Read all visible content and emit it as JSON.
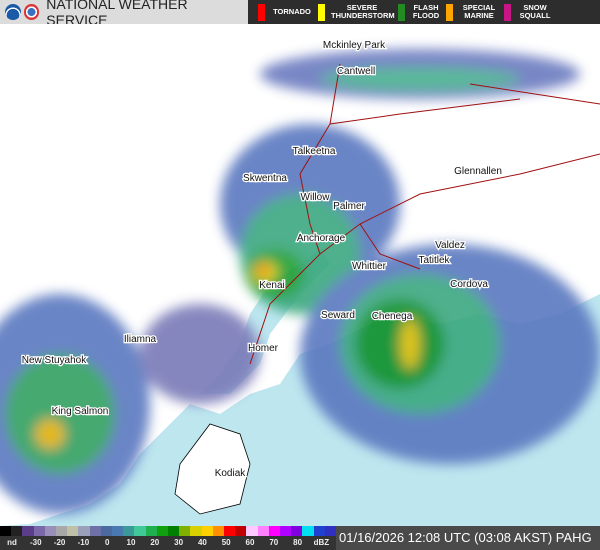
{
  "header": {
    "title": "NATIONAL WEATHER SERVICE",
    "logos": [
      "noaa-logo",
      "nws-logo"
    ]
  },
  "warnings": [
    {
      "label": "TORNADO",
      "color": "#ff0000"
    },
    {
      "label": "SEVERE THUNDERSTORM",
      "color": "#ffff00"
    },
    {
      "label": "FLASH FLOOD",
      "color": "#228b22"
    },
    {
      "label": "SPECIAL MARINE",
      "color": "#ffa500"
    },
    {
      "label": "SNOW SQUALL",
      "color": "#c71585"
    }
  ],
  "map": {
    "cities": [
      {
        "name": "Mckinley Park"
      },
      {
        "name": "Cantwell"
      },
      {
        "name": "Talkeetna"
      },
      {
        "name": "Skwentna"
      },
      {
        "name": "Willow"
      },
      {
        "name": "Glennallen"
      },
      {
        "name": "Palmer"
      },
      {
        "name": "Anchorage"
      },
      {
        "name": "Valdez"
      },
      {
        "name": "Whittier"
      },
      {
        "name": "Tatitlek"
      },
      {
        "name": "Kenai"
      },
      {
        "name": "Cordova"
      },
      {
        "name": "Seward"
      },
      {
        "name": "Chenega"
      },
      {
        "name": "Iliamna"
      },
      {
        "name": "Homer"
      },
      {
        "name": "New Stuyahok"
      },
      {
        "name": "King Salmon"
      },
      {
        "name": "Kodiak"
      }
    ],
    "colors": {
      "ocean": "#bde6ef",
      "land": "#ffffff",
      "roads": "#a01010"
    }
  },
  "legend": {
    "colors": [
      "#000000",
      "#222222",
      "#5c3d8a",
      "#7a68a8",
      "#9a8fb8",
      "#a8a8a8",
      "#c0c0a8",
      "#9aa0b8",
      "#7070a8",
      "#4a6aa0",
      "#4a78b0",
      "#3a9a98",
      "#40c898",
      "#20b050",
      "#10a010",
      "#008000",
      "#80b000",
      "#d8d000",
      "#ffd000",
      "#ff9000",
      "#ff0000",
      "#c00000",
      "#ffc8ff",
      "#ff80ff",
      "#ff00ff",
      "#b000ff",
      "#8000e0",
      "#00e0f0",
      "#2040d0",
      "#3030c0"
    ],
    "ticks": [
      "nd",
      "-30",
      "-20",
      "-10",
      "0",
      "10",
      "20",
      "30",
      "40",
      "50",
      "60",
      "70",
      "80",
      "dBZ"
    ]
  },
  "timestamp": "01/16/2026 12:08 UTC (03:08 AKST) PAHG"
}
